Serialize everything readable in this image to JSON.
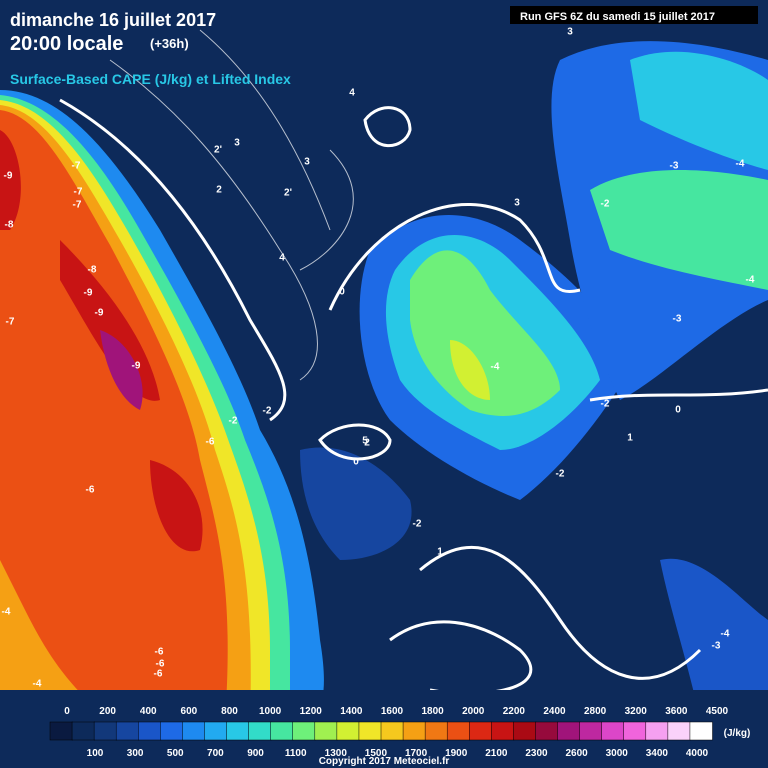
{
  "header": {
    "date": "dimanche 16 juillet 2017",
    "time": "20:00 locale",
    "offset": "(+36h)",
    "product": "Surface-Based CAPE (J/kg) et Lifted Index",
    "run": "Run GFS 6Z du samedi 15 juillet 2017"
  },
  "colorbar": {
    "top_labels": [
      "0",
      "200",
      "400",
      "600",
      "800",
      "1000",
      "1200",
      "1400",
      "1600",
      "1800",
      "2000",
      "2200",
      "2400",
      "2800",
      "3200",
      "3600",
      "4500"
    ],
    "bottom_labels": [
      "100",
      "300",
      "500",
      "700",
      "900",
      "1100",
      "1300",
      "1500",
      "1700",
      "1900",
      "2100",
      "2300",
      "2600",
      "3000",
      "3400",
      "4000"
    ],
    "unit": "(J/kg)",
    "colors": [
      "#0a1a40",
      "#0d2a5a",
      "#12387a",
      "#1646a0",
      "#1a56c8",
      "#1e6ae6",
      "#1e8af0",
      "#22aaf0",
      "#28c8e6",
      "#32dcc8",
      "#46e6a0",
      "#6ef07a",
      "#a0f050",
      "#d2f032",
      "#f0e628",
      "#f5c81e",
      "#f5a014",
      "#f07814",
      "#eb5014",
      "#dc2814",
      "#c81414",
      "#aa0a14",
      "#960a3c",
      "#a0147a",
      "#be28a0",
      "#dc46c8",
      "#f064dc",
      "#f5a0f0",
      "#fad2fa",
      "#ffffff"
    ]
  },
  "contour_labels": [
    "-9",
    "-7",
    "-7",
    "-7",
    "-8",
    "-8",
    "-9",
    "-9",
    "-7",
    "-9",
    "-6",
    "-6",
    "-4",
    "-6",
    "-6",
    "-6",
    "-4",
    "-4",
    "-4",
    "-3",
    "-2",
    "-2",
    "-2",
    "-2",
    "-3",
    "-4",
    "-3",
    "-2",
    "-2",
    "-4",
    "0",
    "0",
    "0",
    "1",
    "1",
    "2",
    "2",
    "3",
    "3",
    "4",
    "5",
    "2'",
    "2'",
    "3",
    "3",
    "4"
  ],
  "copyright": "Copyright 2017 Meteociel.fr"
}
